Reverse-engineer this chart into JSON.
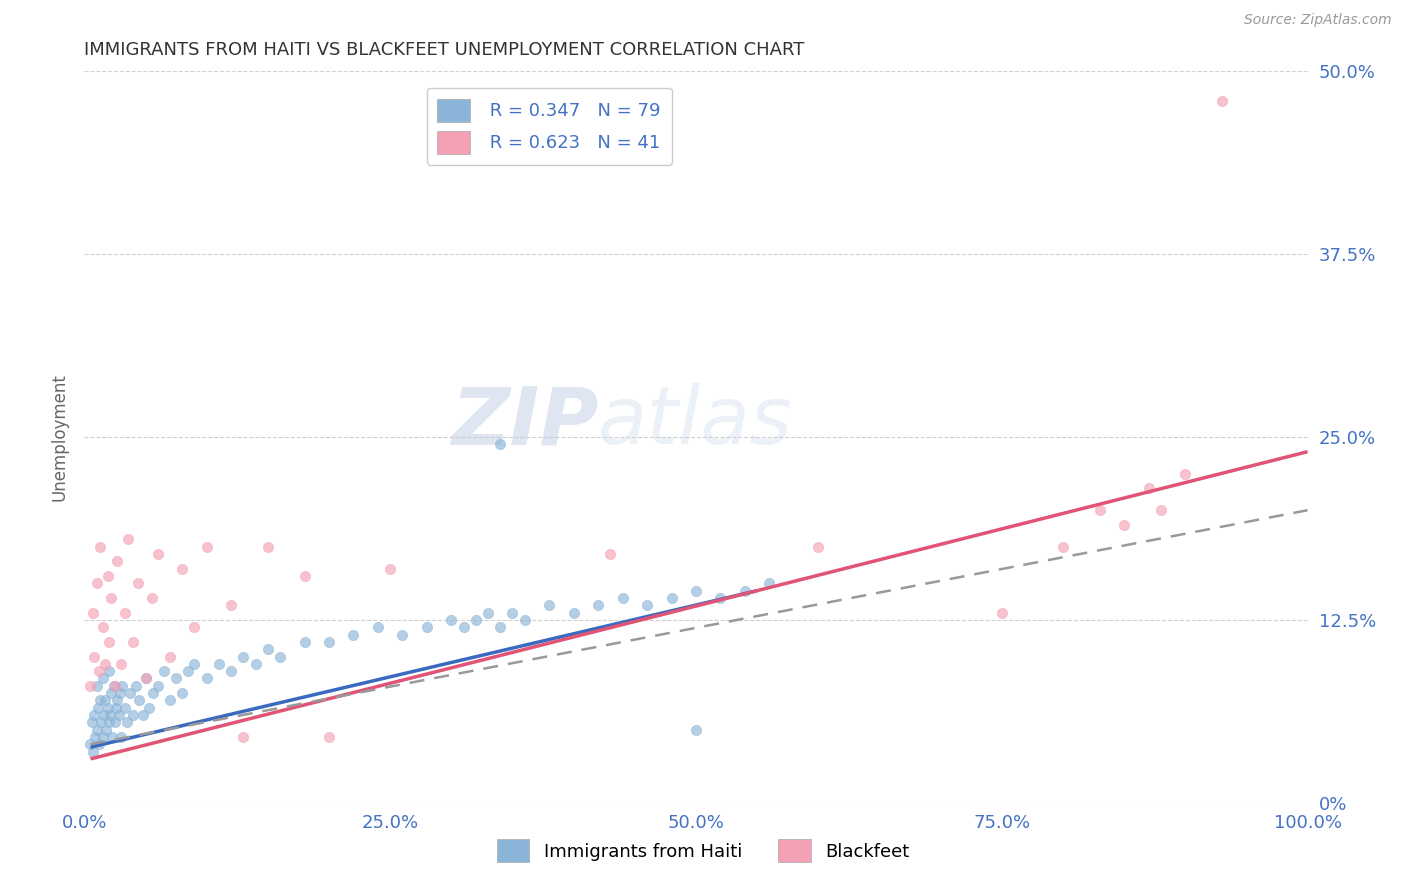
{
  "title": "IMMIGRANTS FROM HAITI VS BLACKFEET UNEMPLOYMENT CORRELATION CHART",
  "source": "Source: ZipAtlas.com",
  "ylabel": "Unemployment",
  "legend_label_1": "Immigrants from Haiti",
  "legend_label_2": "Blackfeet",
  "r1_text": "0.347",
  "n1": 79,
  "r2_text": "0.623",
  "n2": 41,
  "color_blue": "#8ab4d8",
  "color_pink": "#f4a0b5",
  "trend_blue": "#3a6abf",
  "trend_pink": "#e05575",
  "trend_dashed": "#999999",
  "xlim": [
    0.0,
    1.0
  ],
  "ylim": [
    0.0,
    0.5
  ],
  "xticks": [
    0.0,
    0.25,
    0.5,
    0.75,
    1.0
  ],
  "yticks": [
    0.0,
    0.125,
    0.25,
    0.375,
    0.5
  ],
  "xtick_labels": [
    "0.0%",
    "25.0%",
    "50.0%",
    "75.0%",
    "100.0%"
  ],
  "ytick_labels_right": [
    "0%",
    "12.5%",
    "25.0%",
    "37.5%",
    "50.0%"
  ],
  "blue_x": [
    0.005,
    0.006,
    0.007,
    0.008,
    0.009,
    0.01,
    0.01,
    0.011,
    0.012,
    0.013,
    0.014,
    0.015,
    0.015,
    0.016,
    0.017,
    0.018,
    0.019,
    0.02,
    0.02,
    0.021,
    0.022,
    0.023,
    0.024,
    0.025,
    0.026,
    0.027,
    0.028,
    0.029,
    0.03,
    0.031,
    0.033,
    0.035,
    0.037,
    0.04,
    0.042,
    0.045,
    0.048,
    0.05,
    0.053,
    0.056,
    0.06,
    0.065,
    0.07,
    0.075,
    0.08,
    0.085,
    0.09,
    0.1,
    0.11,
    0.12,
    0.13,
    0.14,
    0.15,
    0.16,
    0.18,
    0.2,
    0.22,
    0.24,
    0.26,
    0.28,
    0.3,
    0.31,
    0.32,
    0.33,
    0.34,
    0.35,
    0.36,
    0.38,
    0.4,
    0.42,
    0.44,
    0.46,
    0.48,
    0.5,
    0.52,
    0.54,
    0.56,
    0.34,
    0.5
  ],
  "blue_y": [
    0.04,
    0.055,
    0.035,
    0.06,
    0.045,
    0.05,
    0.08,
    0.065,
    0.04,
    0.07,
    0.055,
    0.045,
    0.085,
    0.06,
    0.07,
    0.05,
    0.065,
    0.055,
    0.09,
    0.06,
    0.075,
    0.045,
    0.08,
    0.055,
    0.065,
    0.07,
    0.06,
    0.075,
    0.045,
    0.08,
    0.065,
    0.055,
    0.075,
    0.06,
    0.08,
    0.07,
    0.06,
    0.085,
    0.065,
    0.075,
    0.08,
    0.09,
    0.07,
    0.085,
    0.075,
    0.09,
    0.095,
    0.085,
    0.095,
    0.09,
    0.1,
    0.095,
    0.105,
    0.1,
    0.11,
    0.11,
    0.115,
    0.12,
    0.115,
    0.12,
    0.125,
    0.12,
    0.125,
    0.13,
    0.12,
    0.13,
    0.125,
    0.135,
    0.13,
    0.135,
    0.14,
    0.135,
    0.14,
    0.145,
    0.14,
    0.145,
    0.15,
    0.245,
    0.05
  ],
  "pink_x": [
    0.005,
    0.007,
    0.008,
    0.01,
    0.012,
    0.013,
    0.015,
    0.017,
    0.019,
    0.02,
    0.022,
    0.025,
    0.027,
    0.03,
    0.033,
    0.036,
    0.04,
    0.044,
    0.05,
    0.055,
    0.06,
    0.07,
    0.08,
    0.09,
    0.1,
    0.12,
    0.13,
    0.15,
    0.18,
    0.2,
    0.25,
    0.43,
    0.6,
    0.75,
    0.8,
    0.83,
    0.85,
    0.87,
    0.88,
    0.9,
    0.93
  ],
  "pink_y": [
    0.08,
    0.13,
    0.1,
    0.15,
    0.09,
    0.175,
    0.12,
    0.095,
    0.155,
    0.11,
    0.14,
    0.08,
    0.165,
    0.095,
    0.13,
    0.18,
    0.11,
    0.15,
    0.085,
    0.14,
    0.17,
    0.1,
    0.16,
    0.12,
    0.175,
    0.135,
    0.045,
    0.175,
    0.155,
    0.045,
    0.16,
    0.17,
    0.175,
    0.13,
    0.175,
    0.2,
    0.19,
    0.215,
    0.2,
    0.225,
    0.48
  ],
  "blue_trend_x": [
    0.005,
    0.55
  ],
  "blue_trend_y": [
    0.038,
    0.145
  ],
  "pink_trend_x": [
    0.005,
    1.0
  ],
  "pink_trend_y": [
    0.03,
    0.24
  ],
  "dashed_trend_x": [
    0.005,
    1.0
  ],
  "dashed_trend_y": [
    0.04,
    0.2
  ],
  "watermark_zip": "ZIP",
  "watermark_atlas": "atlas",
  "background": "#ffffff",
  "grid_color": "#d0d0d0"
}
